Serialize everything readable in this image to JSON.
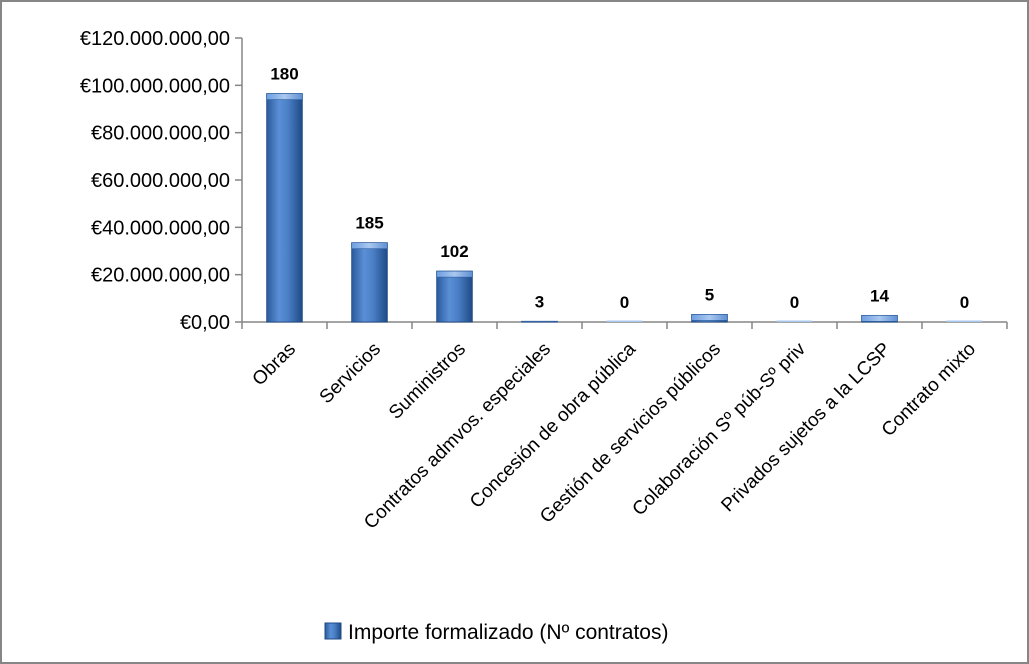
{
  "chart_data": {
    "type": "bar",
    "categories": [
      "Obras",
      "Servicios",
      "Suministros",
      "Contratos admvos. especiales",
      "Concesión de obra pública",
      "Gestión de servicios públicos",
      "Colaboración Sº púb-Sº priv",
      "Privados sujetos a la LCSP",
      "Contrato mixto"
    ],
    "series": [
      {
        "name": "Importe formalizado (Nº contratos)",
        "values": [
          96500000,
          33500000,
          21500000,
          300000,
          0,
          3200000,
          0,
          2800000,
          0
        ],
        "data_labels": [
          "180",
          "185",
          "102",
          "3",
          "0",
          "5",
          "0",
          "14",
          "0"
        ],
        "color": "#4F81BD"
      }
    ],
    "ylim": [
      0,
      120000000
    ],
    "yticks": [
      0,
      20000000,
      40000000,
      60000000,
      80000000,
      100000000,
      120000000
    ],
    "ytick_labels": [
      "€0,00",
      "€20.000.000,00",
      "€40.000.000,00",
      "€60.000.000,00",
      "€80.000.000,00",
      "€100.000.000,00",
      "€120.000.000,00"
    ],
    "title": "",
    "xlabel": "",
    "ylabel": "",
    "grid": false,
    "legend_position": "bottom"
  }
}
